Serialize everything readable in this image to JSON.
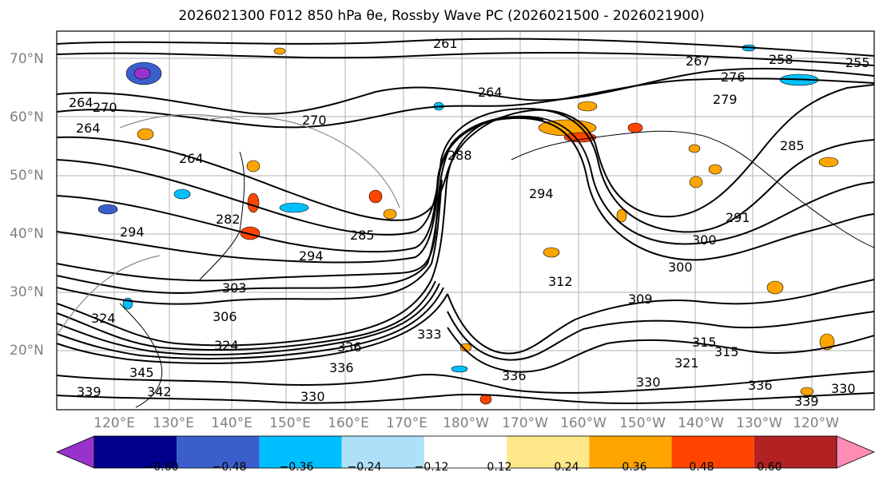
{
  "title": "2026021300 F012 850 hPa θe, Rossby Wave PC (2026021500 - 2026021900)",
  "lat_labels": [
    "70°N",
    "60°N",
    "50°N",
    "40°N",
    "30°N",
    "20°N"
  ],
  "lon_labels": [
    "120°E",
    "130°E",
    "140°E",
    "150°E",
    "160°E",
    "170°E",
    "180°W",
    "170°W",
    "160°W",
    "150°W",
    "140°W",
    "130°W",
    "120°W"
  ],
  "colorbar": {
    "colors": [
      "#9932cc",
      "#00008b",
      "#3a5fcd",
      "#00bfff",
      "#afe0fa",
      "#ffffff",
      "#ffe88a",
      "#ffa500",
      "#ff4500",
      "#b22222",
      "#ff8cb4"
    ],
    "tick_labels": [
      "−0.60",
      "−0.48",
      "−0.36",
      "−0.24",
      "−0.12",
      "0.12",
      "0.24",
      "0.36",
      "0.48",
      "0.60"
    ]
  },
  "contour_labels": [
    "261",
    "267",
    "258",
    "255",
    "276",
    "279",
    "264",
    "270",
    "264",
    "264",
    "285",
    "288",
    "294",
    "291",
    "300",
    "300",
    "285",
    "294",
    "282",
    "294",
    "303",
    "306",
    "312",
    "309",
    "315",
    "315",
    "321",
    "324",
    "330",
    "336",
    "336",
    "336",
    "333",
    "336",
    "339",
    "339",
    "342",
    "345",
    "330",
    "324",
    "330",
    "264",
    "270"
  ]
}
